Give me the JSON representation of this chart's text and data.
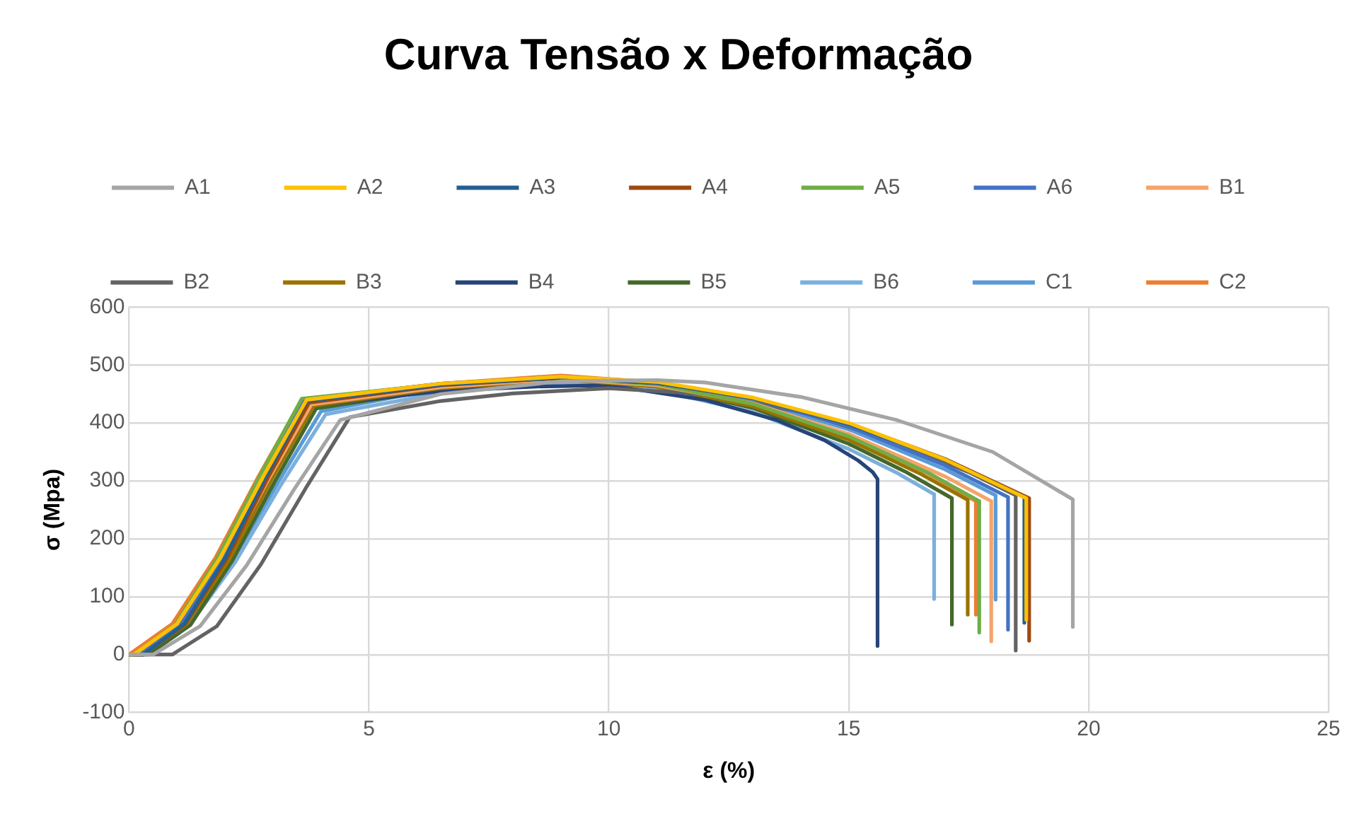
{
  "chart_data": {
    "type": "line",
    "title": "Curva Tensão x Deformação",
    "xlabel": "ε (%)",
    "ylabel": "σ (Mpa)",
    "xlim": [
      0,
      25
    ],
    "xticks": [
      0,
      5,
      10,
      15,
      20,
      25
    ],
    "ylim": [
      -100,
      600
    ],
    "yticks": [
      -100,
      0,
      100,
      200,
      300,
      400,
      500,
      600
    ],
    "grid": true,
    "legend": "top",
    "marker": "none",
    "line_style": "solid",
    "series": [
      {
        "name": "A1",
        "color": "#a5a5a5",
        "x": [
          0,
          0.5,
          1.48,
          2.45,
          3.43,
          4.4,
          6.5,
          9,
          11,
          12,
          14,
          16,
          18,
          19.67,
          19.67
        ],
        "values": [
          0,
          0,
          49,
          154,
          284,
          405,
          450,
          472,
          474,
          470,
          445,
          405,
          350,
          268,
          48
        ]
      },
      {
        "name": "A2",
        "color": "#ffc000",
        "x": [
          0,
          0.1,
          1.0,
          1.9,
          2.8,
          3.7,
          6.5,
          9,
          11,
          13,
          15,
          17,
          18.7,
          18.7
        ],
        "values": [
          0,
          0,
          53,
          167,
          308,
          440,
          468,
          480,
          471,
          444,
          400,
          337,
          270,
          60
        ]
      },
      {
        "name": "A3",
        "color": "#255e91",
        "x": [
          0,
          0.3,
          1.15,
          2.0,
          2.85,
          3.7,
          6.5,
          9,
          11,
          13,
          15,
          17,
          18.66,
          18.66
        ],
        "values": [
          0,
          0,
          53,
          166,
          307,
          438,
          466,
          478,
          469,
          443,
          398,
          337,
          272,
          55
        ]
      },
      {
        "name": "A4",
        "color": "#9e480e",
        "x": [
          0,
          0.3,
          1.16,
          2.03,
          2.89,
          3.75,
          6.5,
          9,
          11,
          13,
          15,
          17,
          18.76,
          18.76
        ],
        "values": [
          0,
          0,
          52,
          165,
          305,
          435,
          465,
          478,
          469,
          443,
          399,
          338,
          270,
          24
        ]
      },
      {
        "name": "A5",
        "color": "#70ad47",
        "x": [
          0,
          0.1,
          0.98,
          1.85,
          2.73,
          3.6,
          6.5,
          9,
          11,
          13,
          15,
          16.7,
          17.72,
          17.72
        ],
        "values": [
          0,
          0,
          53,
          168,
          309,
          442,
          467,
          478,
          467,
          433,
          377,
          312,
          265,
          38
        ]
      },
      {
        "name": "A6",
        "color": "#4472c4",
        "x": [
          0,
          0.2,
          1.06,
          1.93,
          2.79,
          3.65,
          6.5,
          9,
          11,
          13,
          15,
          17,
          18.32,
          18.32
        ],
        "values": [
          0,
          0,
          53,
          167,
          308,
          440,
          468,
          480,
          470,
          442,
          394,
          327,
          272,
          43
        ]
      },
      {
        "name": "B1",
        "color": "#f4a46a",
        "x": [
          0,
          0.2,
          1.1,
          2.0,
          2.9,
          3.8,
          6.5,
          9,
          11,
          13,
          15,
          17,
          17.97,
          17.97
        ],
        "values": [
          0,
          0,
          52,
          164,
          302,
          432,
          462,
          476,
          465,
          434,
          381,
          308,
          265,
          23
        ]
      },
      {
        "name": "B2",
        "color": "#636363",
        "x": [
          0,
          0.9,
          1.83,
          2.75,
          3.68,
          4.6,
          6.5,
          8,
          10,
          12,
          14,
          16,
          17.5,
          18.48,
          18.48
        ],
        "values": [
          0,
          0,
          49,
          156,
          287,
          410,
          438,
          451,
          460,
          450,
          419,
          367,
          315,
          275,
          7
        ]
      },
      {
        "name": "B3",
        "color": "#997300",
        "x": [
          0,
          0.3,
          1.19,
          2.08,
          2.96,
          3.85,
          6.5,
          9,
          11,
          13,
          15,
          16.5,
          17.48,
          17.48
        ],
        "values": [
          0,
          0,
          52,
          163,
          301,
          430,
          460,
          475,
          463,
          429,
          371,
          312,
          267,
          69
        ]
      },
      {
        "name": "B4",
        "color": "#264478",
        "x": [
          0,
          0.3,
          1.18,
          2.05,
          2.93,
          3.8,
          6.5,
          8.5,
          10,
          12,
          13.5,
          14.5,
          15.2,
          15.5,
          15.6,
          15.6
        ],
        "values": [
          0,
          0,
          52,
          163,
          301,
          430,
          455,
          463,
          465,
          440,
          405,
          370,
          335,
          315,
          303,
          15
        ]
      },
      {
        "name": "B5",
        "color": "#43682b",
        "x": [
          0,
          0.4,
          1.28,
          2.15,
          3.03,
          3.9,
          6.5,
          9,
          11,
          13,
          15,
          16.2,
          17.15,
          17.15
        ],
        "values": [
          0,
          0,
          51,
          162,
          298,
          425,
          458,
          475,
          463,
          426,
          364,
          315,
          270,
          52
        ]
      },
      {
        "name": "B6",
        "color": "#7cafdd",
        "x": [
          0,
          0.3,
          1.25,
          2.2,
          3.15,
          4.1,
          6.5,
          9,
          11,
          13,
          15,
          16,
          16.78,
          16.78
        ],
        "values": [
          0,
          0,
          50,
          158,
          291,
          415,
          452,
          470,
          457,
          419,
          355,
          314,
          277,
          96
        ]
      },
      {
        "name": "C1",
        "color": "#5b9bd5",
        "x": [
          0,
          0.3,
          1.23,
          2.15,
          3.08,
          4.0,
          6.5,
          9,
          11,
          13,
          15,
          17,
          18.06,
          18.06
        ],
        "values": [
          0,
          0,
          50,
          160,
          294,
          420,
          460,
          478,
          468,
          438,
          389,
          320,
          275,
          95
        ]
      },
      {
        "name": "C2",
        "color": "#ed7d31",
        "x": [
          0,
          0.9,
          1.8,
          2.7,
          3.6,
          6.5,
          9,
          11,
          13,
          15,
          16.65,
          17.65,
          17.65
        ],
        "values": [
          0,
          53,
          167,
          308,
          440,
          468,
          482,
          470,
          436,
          378,
          313,
          265,
          69
        ]
      }
    ]
  }
}
